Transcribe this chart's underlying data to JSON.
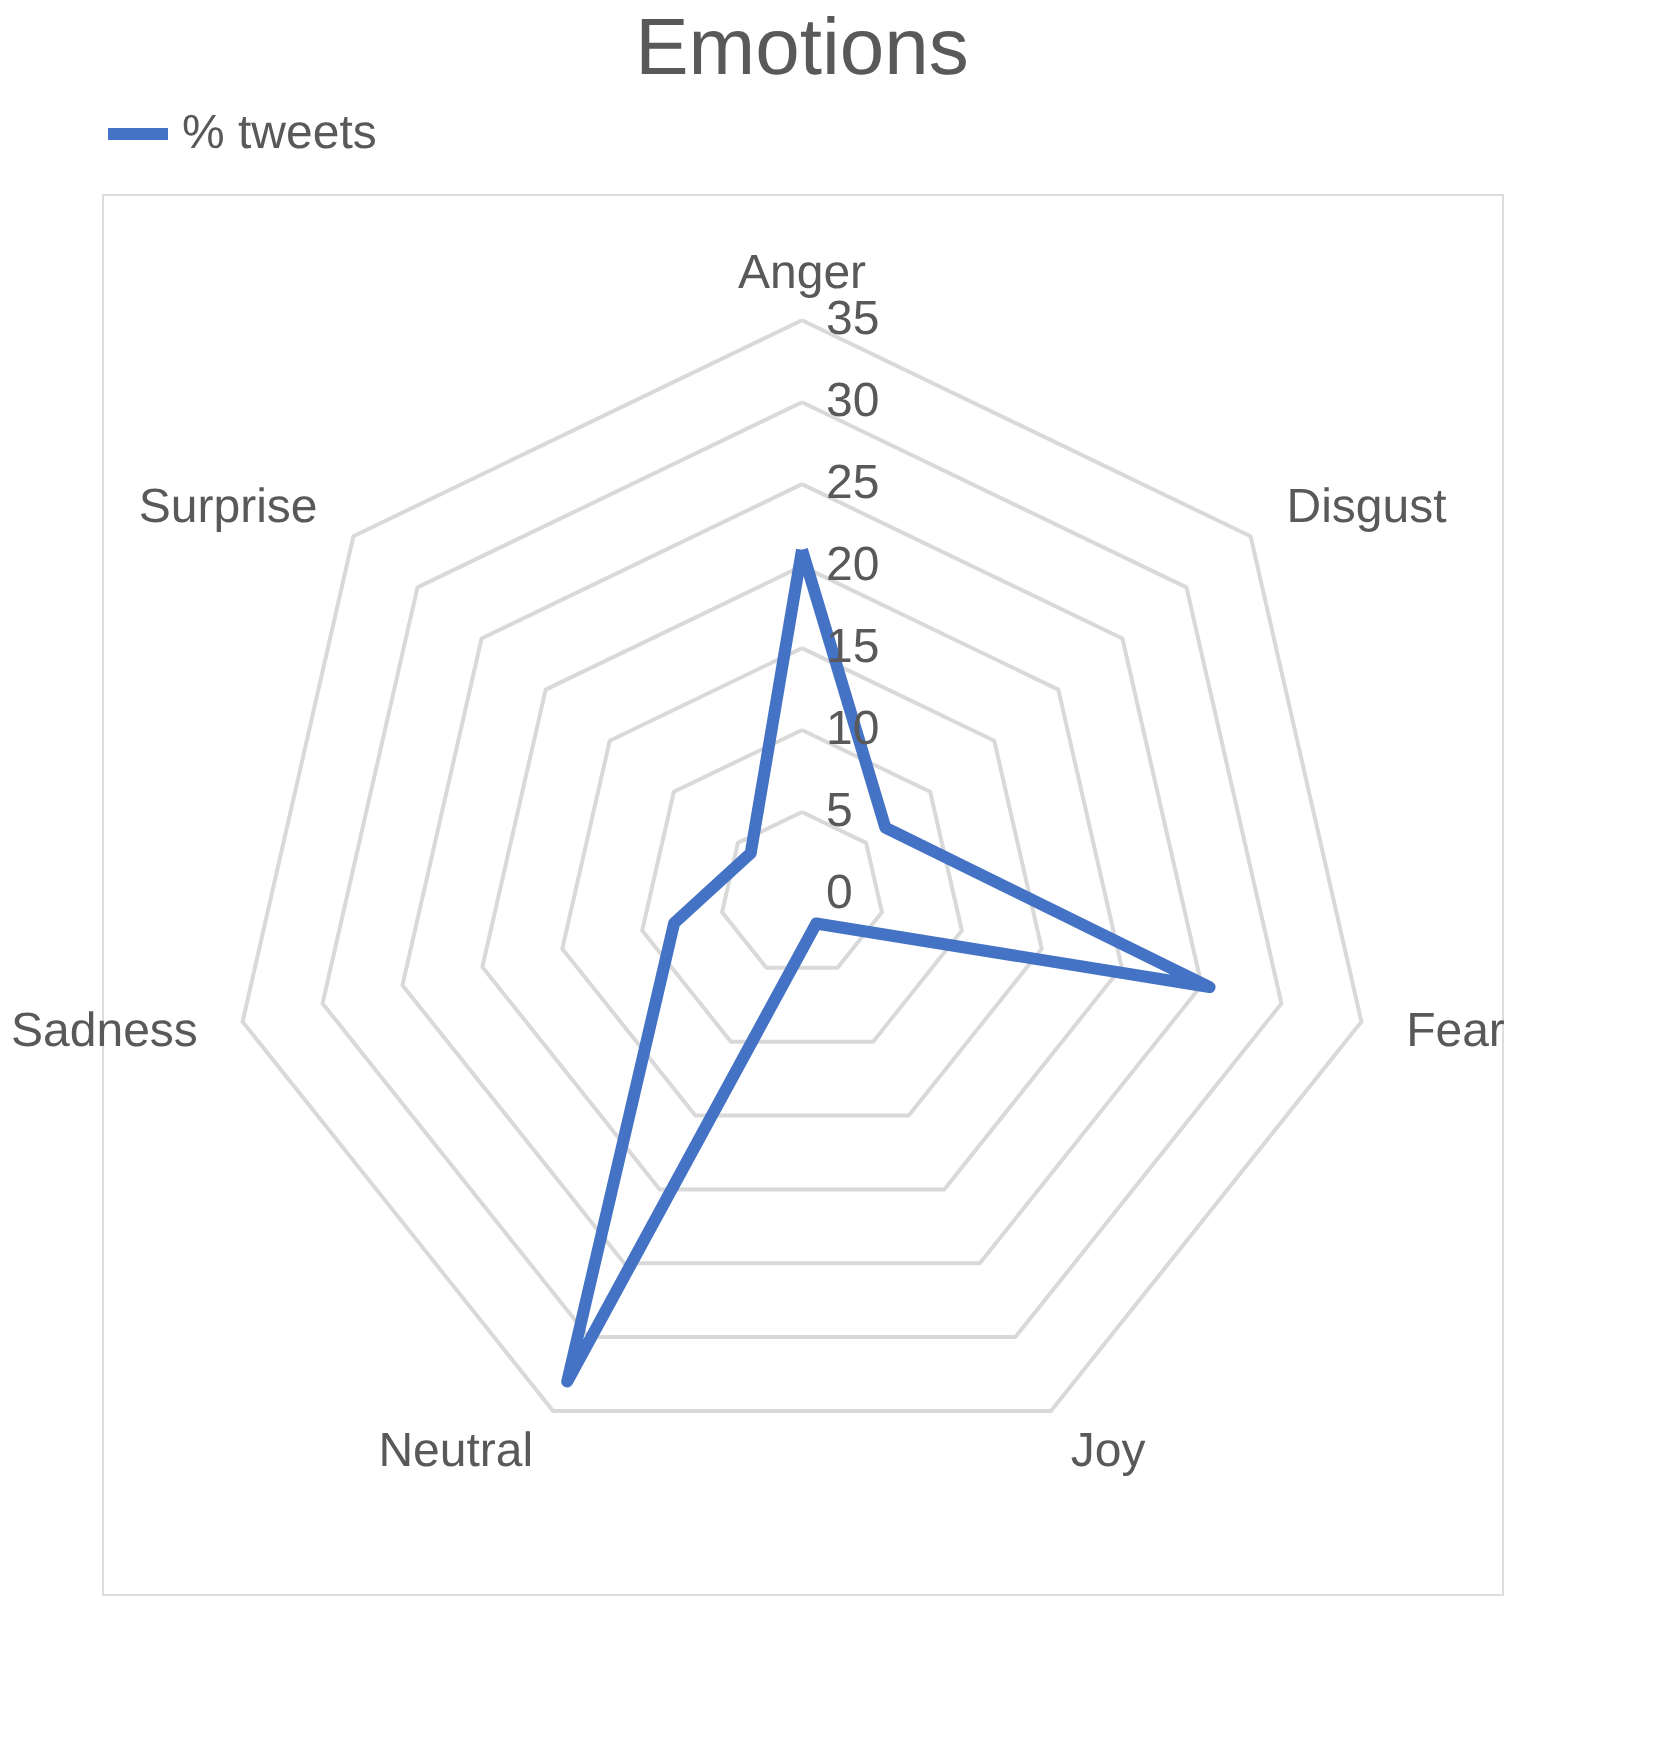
{
  "chart_data": {
    "type": "radar",
    "title": "Emotions",
    "categories": [
      "Anger",
      "Disgust",
      "Fear",
      "Joy",
      "Neutral",
      "Sadness",
      "Surprise"
    ],
    "series": [
      {
        "name": "% tweets",
        "color": "#4472c4",
        "values": [
          21,
          6.5,
          25.5,
          2,
          33,
          8,
          4
        ]
      }
    ],
    "ylim": [
      0,
      35
    ],
    "yticks": [
      0,
      5,
      10,
      15,
      20,
      25,
      30,
      35
    ],
    "grid": true,
    "legend": "top",
    "marker": "none",
    "line_style": "solid"
  }
}
